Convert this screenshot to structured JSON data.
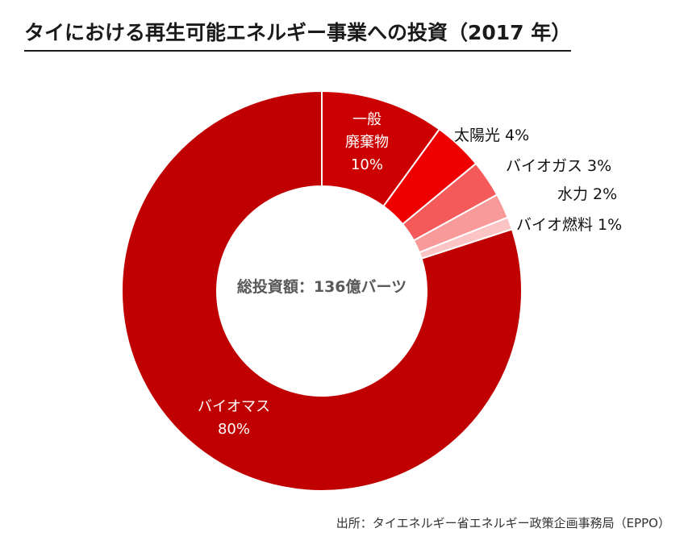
{
  "title": "タイにおける再生可能エネルギー事業への投資（2017 年）",
  "source": "出所：タイエネルギー省エネルギー政策企画事務局（EPPO）",
  "chart_data": {
    "type": "pie",
    "variant": "donut",
    "center_label": "総投資額：136億バーツ",
    "slices": [
      {
        "label": "一般廃棄物",
        "display_lines": [
          "一般",
          "廃棄物",
          "10%"
        ],
        "value": 10,
        "color": "#cc0000",
        "label_style": "inside"
      },
      {
        "label": "太陽光",
        "display_lines": [
          "太陽光 4%"
        ],
        "value": 4,
        "color": "#ee0000",
        "label_style": "outside"
      },
      {
        "label": "バイオガス",
        "display_lines": [
          "バイオガス 3%"
        ],
        "value": 3,
        "color": "#f55a5a",
        "label_style": "outside"
      },
      {
        "label": "水力",
        "display_lines": [
          "水力 2%"
        ],
        "value": 2,
        "color": "#f99a9a",
        "label_style": "outside"
      },
      {
        "label": "バイオ燃料",
        "display_lines": [
          "バイオ燃料 1%"
        ],
        "value": 1,
        "color": "#fcc4c4",
        "label_style": "outside"
      },
      {
        "label": "バイオマス",
        "display_lines": [
          "バイオマス",
          "80%"
        ],
        "value": 80,
        "color": "#c00000",
        "label_style": "inside"
      }
    ],
    "start_angle": "12 o'clock",
    "direction": "clockwise"
  }
}
